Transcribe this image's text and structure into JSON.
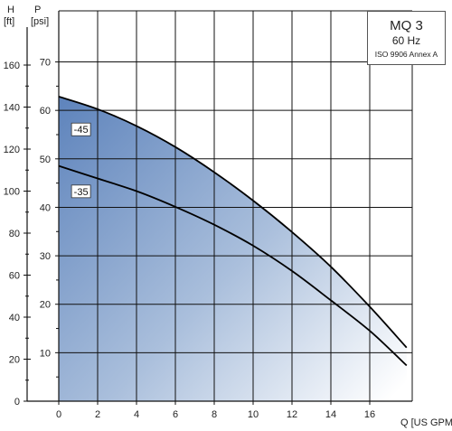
{
  "chart_data": {
    "type": "line",
    "title": "MQ 3",
    "subtitle": "60 Hz",
    "standard": "ISO 9906 Annex A",
    "xlabel": "Q",
    "xunit": "[US GPM]",
    "y_left_outer_label": "H",
    "y_left_outer_unit": "[ft]",
    "y_left_inner_label": "P",
    "y_left_inner_unit": "[psi]",
    "x_ticks": [
      "0",
      "2",
      "4",
      "6",
      "8",
      "10",
      "12",
      "14",
      "16"
    ],
    "h_ticks": [
      "0",
      "20",
      "40",
      "60",
      "80",
      "100",
      "120",
      "140",
      "160"
    ],
    "p_ticks": [
      "10",
      "20",
      "30",
      "40",
      "50",
      "60",
      "70"
    ],
    "xlim": [
      0,
      18
    ],
    "ylim_ft": [
      0,
      170
    ],
    "series": [
      {
        "name": "-45",
        "x": [
          0,
          2,
          4,
          6,
          8,
          10,
          12,
          14,
          16,
          17.9
        ],
        "y_ft": [
          145,
          139,
          131,
          121,
          109,
          95.5,
          80.5,
          64,
          45,
          25.5
        ]
      },
      {
        "name": "-35",
        "x": [
          0,
          2,
          4,
          6,
          8,
          10,
          12,
          14,
          16,
          17.9
        ],
        "y_ft": [
          112,
          106,
          100,
          92.5,
          84,
          74,
          62,
          48,
          33.5,
          17
        ]
      }
    ],
    "grid": true,
    "colors": {
      "fill_dark": "#5c82bb",
      "fill_light": "#ffffff",
      "line": "#000000",
      "grid": "#111111"
    }
  }
}
